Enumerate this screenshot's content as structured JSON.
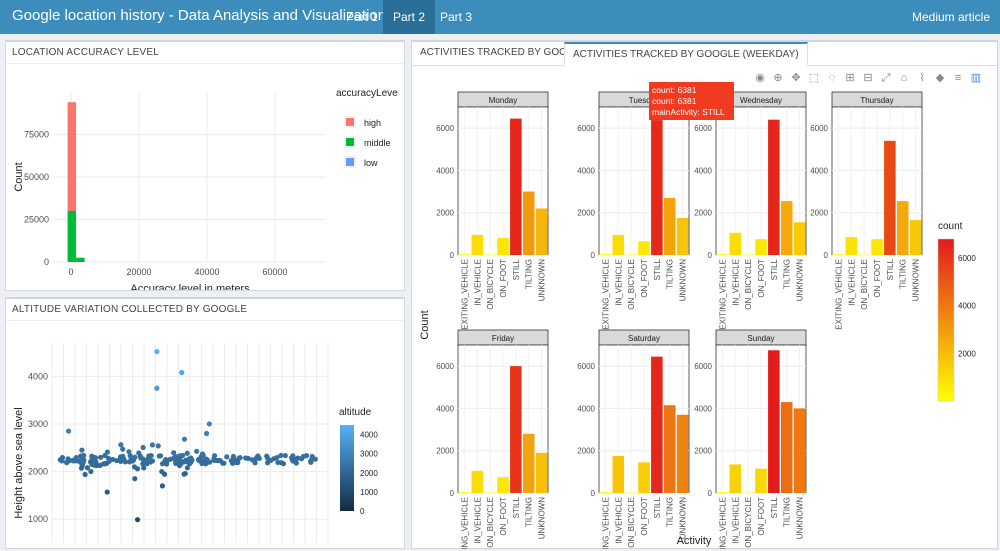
{
  "navbar": {
    "title": "Google location history - Data Analysis and Visualization",
    "tabs": [
      {
        "label": "Part 1",
        "active": false
      },
      {
        "label": "Part 2",
        "active": true
      },
      {
        "label": "Part 3",
        "active": false
      }
    ],
    "right_link": "Medium article",
    "color": "#3c8dbc"
  },
  "panels": {
    "accuracy_title": "LOCATION ACCURACY LEVEL",
    "altitude_title": "ALTITUDE VARIATION COLLECTED BY GOOGLE",
    "activity_tabs": [
      {
        "label": "ACTIVITIES TRACKED BY GOOGLE",
        "active": false
      },
      {
        "label": "ACTIVITIES TRACKED BY GOOGLE (WEEKDAY)",
        "active": true
      }
    ]
  },
  "modebar_icons": [
    "camera-icon",
    "zoom-icon",
    "pan-icon",
    "box-select-icon",
    "lasso-icon",
    "zoom-in-icon",
    "zoom-out-icon",
    "autoscale-icon",
    "reset-axes-icon",
    "spike-lines-icon",
    "hover-closest-icon",
    "hover-compare-icon",
    "plotly-logo-icon"
  ],
  "tooltip": {
    "lines": [
      "count: 6381",
      "count: 6381",
      "mainActivity: STILL"
    ],
    "color": "#f03b20"
  },
  "chart_data": [
    {
      "type": "bar",
      "title": "",
      "xlabel": "Accuracy level in meters",
      "ylabel": "Count",
      "xlim": [
        -5000,
        75000
      ],
      "ylim": [
        0,
        100000
      ],
      "xticks": [
        "0",
        "20000",
        "40000",
        "60000"
      ],
      "xtick_values": [
        0,
        20000,
        40000,
        60000
      ],
      "yticks": [
        "0",
        "25000",
        "50000",
        "75000"
      ],
      "ytick_values": [
        0,
        25000,
        50000,
        75000
      ],
      "stacked": true,
      "bins": [
        {
          "x0": -1000,
          "x1": 1500,
          "high": 64000,
          "middle": 30000,
          "low": 0
        },
        {
          "x0": 1500,
          "x1": 4000,
          "high": 0,
          "middle": 2500,
          "low": 0
        }
      ],
      "legend": {
        "title": "accuracyLeve",
        "entries": [
          {
            "name": "high",
            "color": "#f8766d"
          },
          {
            "name": "middle",
            "color": "#00ba38"
          },
          {
            "name": "low",
            "color": "#619cff"
          }
        ]
      }
    },
    {
      "type": "bar",
      "title": "",
      "xlabel": "Activity",
      "ylabel": "Count",
      "ylim": [
        0,
        7000
      ],
      "yticks": [
        "0",
        "2000",
        "4000",
        "6000"
      ],
      "ytick_values": [
        0,
        2000,
        4000,
        6000
      ],
      "categories": [
        "EXITING_VEHICLE",
        "IN_VEHICLE",
        "ON_BICYCLE",
        "ON_FOOT",
        "STILL",
        "TILTING",
        "UNKNOWN"
      ],
      "facets": [
        {
          "name": "Monday",
          "values": [
            40,
            950,
            20,
            800,
            6450,
            3000,
            2200
          ]
        },
        {
          "name": "Tuesday",
          "values": [
            40,
            950,
            20,
            650,
            6381,
            2700,
            1750
          ]
        },
        {
          "name": "Wednesday",
          "values": [
            40,
            1050,
            20,
            750,
            6400,
            2550,
            1550
          ]
        },
        {
          "name": "Thursday",
          "values": [
            40,
            850,
            20,
            750,
            5400,
            2550,
            1650
          ]
        },
        {
          "name": "Friday",
          "values": [
            40,
            1050,
            20,
            750,
            6000,
            2800,
            1900
          ]
        },
        {
          "name": "Saturday",
          "values": [
            40,
            1750,
            20,
            1450,
            6450,
            4150,
            3700
          ]
        },
        {
          "name": "Sunday",
          "values": [
            40,
            1350,
            20,
            1150,
            6750,
            4300,
            4000
          ]
        }
      ],
      "colorbar": {
        "title": "count",
        "min": 0,
        "max": 6800,
        "ticks": [
          "2000",
          "4000",
          "6000"
        ],
        "tick_values": [
          2000,
          4000,
          6000
        ],
        "low_color": "#ffff00",
        "high_color": "#e31a1c"
      }
    },
    {
      "type": "scatter",
      "title": "",
      "xlabel": "",
      "ylabel": "Height above sea level",
      "ylim": [
        500,
        4700
      ],
      "yticks": [
        "1000",
        "2000",
        "3000",
        "4000"
      ],
      "ytick_values": [
        1000,
        2000,
        3000,
        4000
      ],
      "colorbar": {
        "title": "altitude",
        "ticks": [
          "0",
          "1000",
          "2000",
          "3000",
          "4000"
        ],
        "tick_values": [
          0,
          1000,
          2000,
          3000,
          4000
        ],
        "low_color": "#132b43",
        "high_color": "#56b1f7"
      },
      "outliers": [
        {
          "x": 0.38,
          "y": 4520
        },
        {
          "x": 0.38,
          "y": 3750
        },
        {
          "x": 0.47,
          "y": 4080
        },
        {
          "x": 0.31,
          "y": 990
        },
        {
          "x": 0.4,
          "y": 1700
        },
        {
          "x": 0.06,
          "y": 2850
        },
        {
          "x": 0.57,
          "y": 3000
        },
        {
          "x": 0.56,
          "y": 2800
        },
        {
          "x": 0.2,
          "y": 1570
        },
        {
          "x": 0.3,
          "y": 1850
        },
        {
          "x": 0.12,
          "y": 1940
        },
        {
          "x": 0.48,
          "y": 2680
        }
      ]
    }
  ]
}
